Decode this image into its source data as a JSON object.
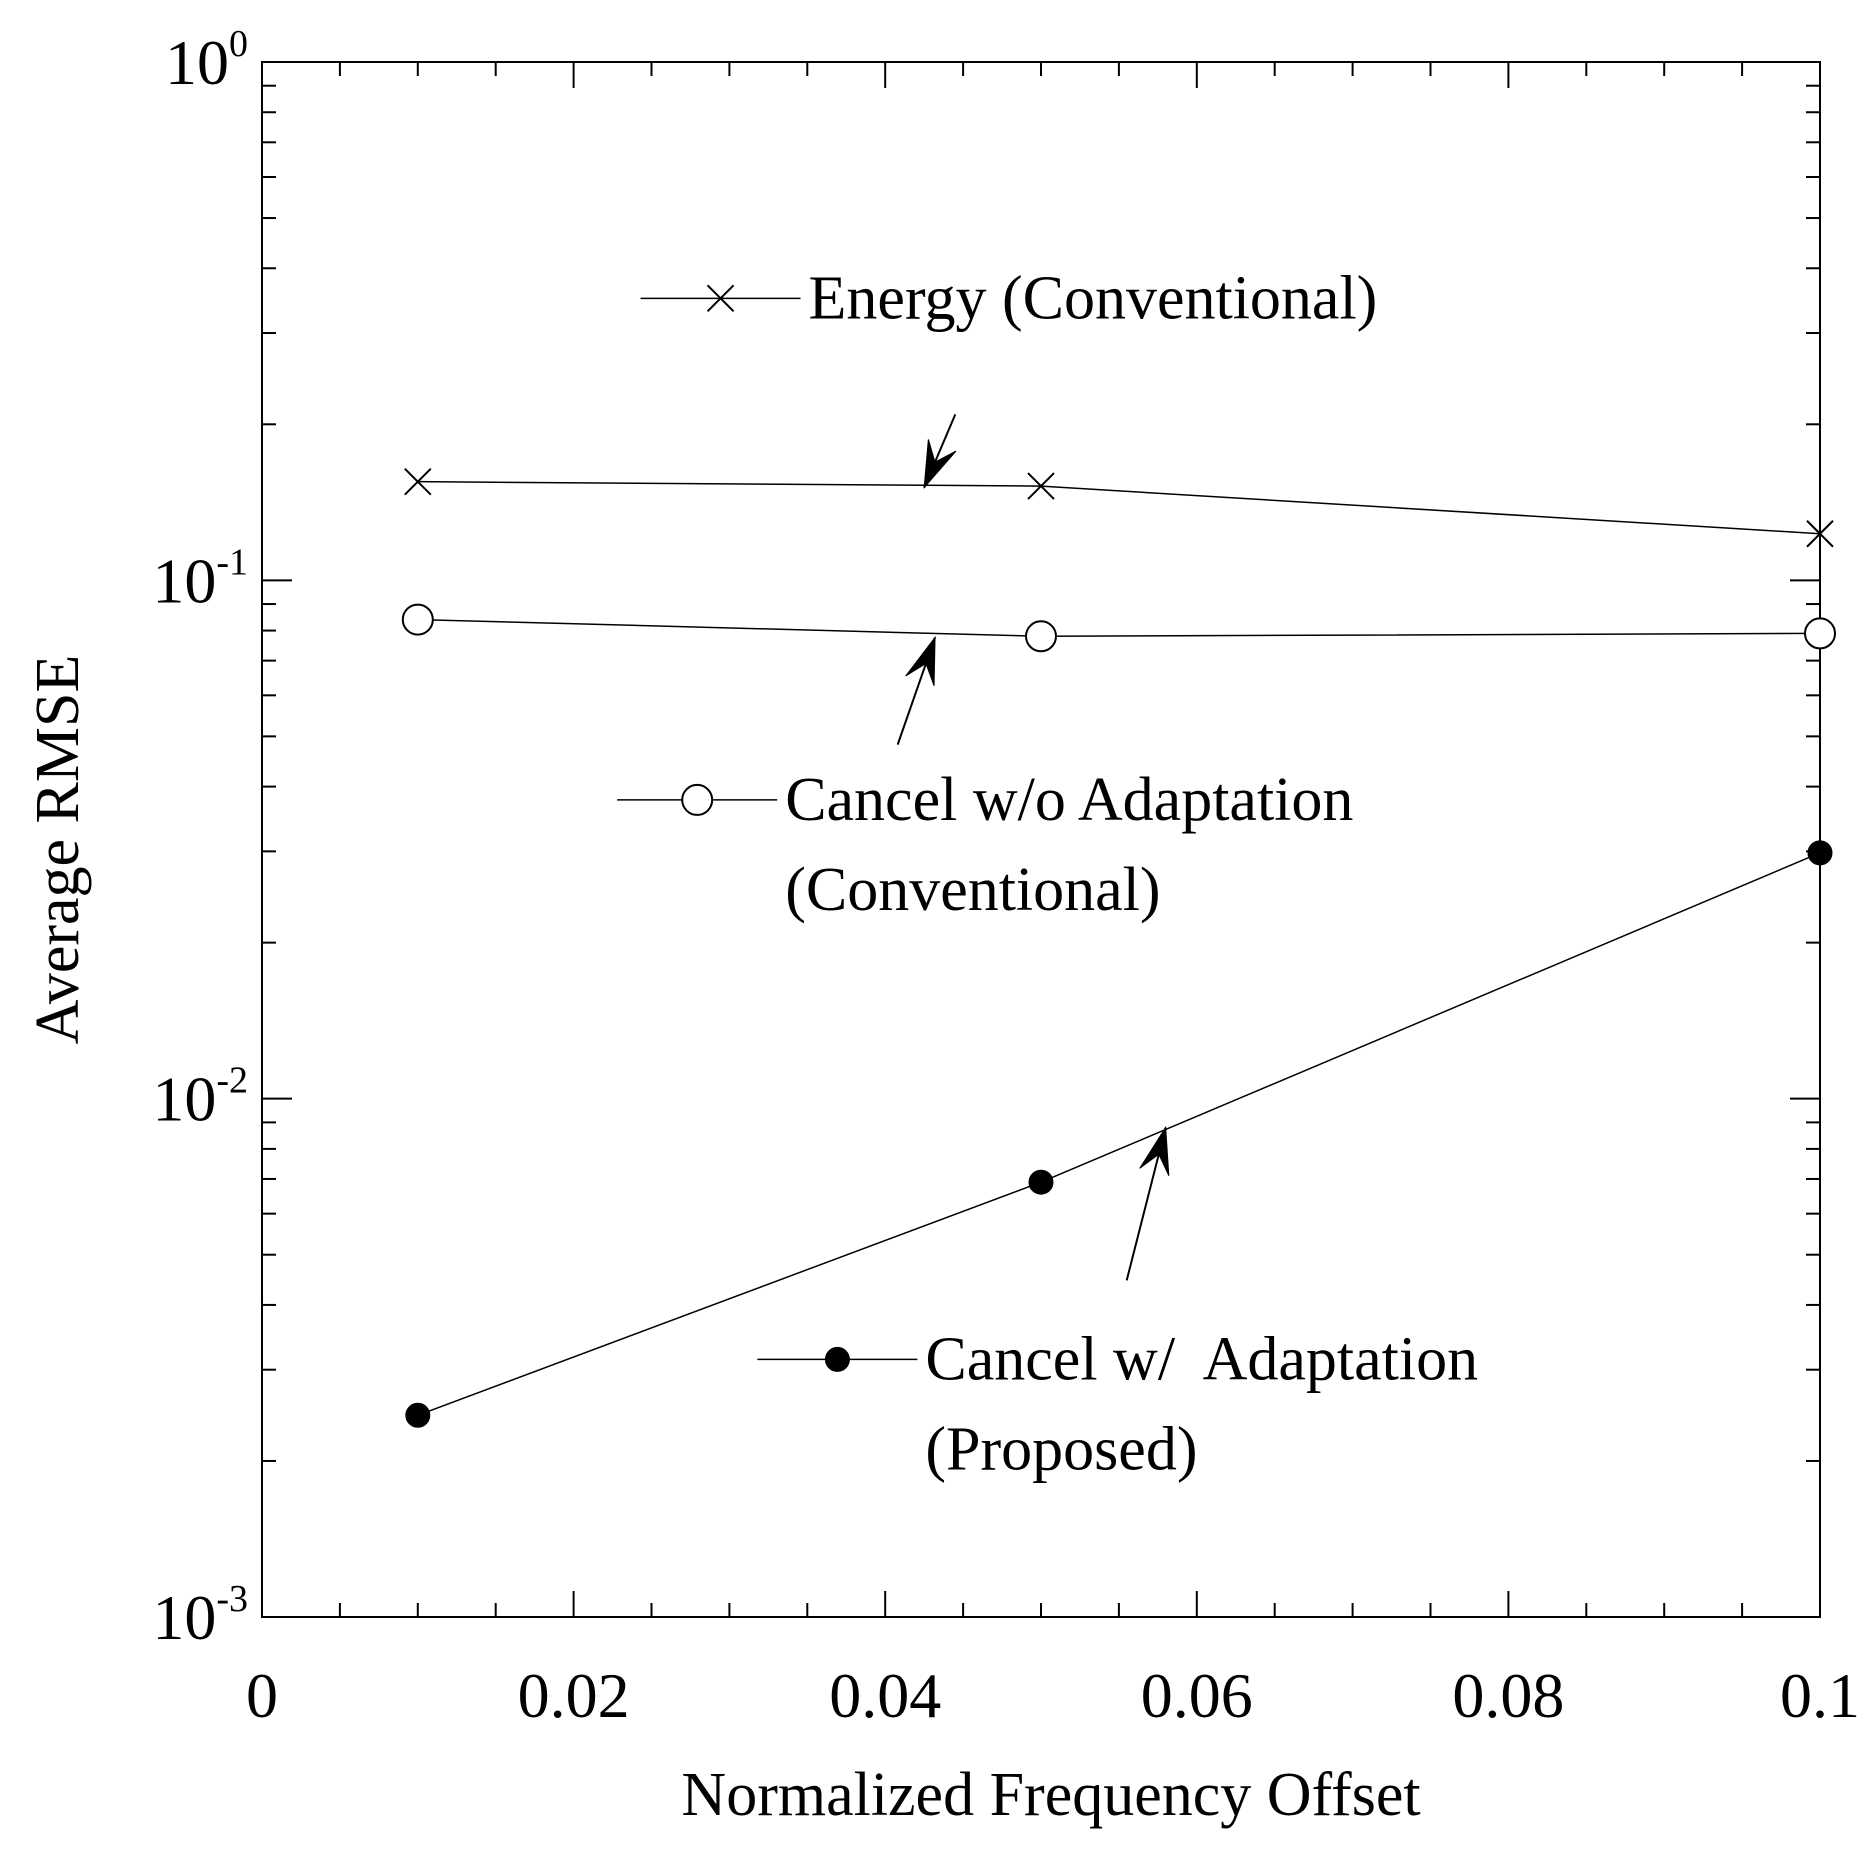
{
  "chart_data": {
    "type": "line",
    "title": "",
    "xlabel": "Normalized Frequency Offset",
    "ylabel": "Average RMSE",
    "xlim": [
      0,
      0.1
    ],
    "ylim": [
      0.001,
      1
    ],
    "yscale": "log",
    "grid": false,
    "x_ticks": [
      {
        "value": 0,
        "label": "0"
      },
      {
        "value": 0.02,
        "label": "0.02"
      },
      {
        "value": 0.04,
        "label": "0.04"
      },
      {
        "value": 0.06,
        "label": "0.06"
      },
      {
        "value": 0.08,
        "label": "0.08"
      },
      {
        "value": 0.1,
        "label": "0.1"
      }
    ],
    "y_ticks": [
      {
        "value": 0.001,
        "base": "10",
        "exp": "-3"
      },
      {
        "value": 0.01,
        "base": "10",
        "exp": "-2"
      },
      {
        "value": 0.1,
        "base": "10",
        "exp": "-1"
      },
      {
        "value": 1,
        "base": "10",
        "exp": "0"
      }
    ],
    "series": [
      {
        "name": "Energy (Conventional)",
        "marker": "x",
        "x": [
          0.01,
          0.05,
          0.1
        ],
        "y": [
          0.155,
          0.152,
          0.123
        ],
        "label_lines": [
          "Energy (Conventional)"
        ],
        "legend_pos": {
          "x": 0.032,
          "y": 0.35
        },
        "arrow": {
          "from": {
            "x": 0.0445,
            "y": 0.209
          },
          "to": {
            "x": 0.0425,
            "y": 0.151
          }
        }
      },
      {
        "name": "Cancel w/o Adaptation (Conventional)",
        "marker": "open-circle",
        "x": [
          0.01,
          0.05,
          0.1
        ],
        "y": [
          0.084,
          0.078,
          0.079
        ],
        "label_lines": [
          "Cancel w/o Adaptation",
          "(Conventional)"
        ],
        "legend_pos": {
          "x": 0.0305,
          "y": 0.0377
        },
        "arrow": {
          "from": {
            "x": 0.0408,
            "y": 0.0482
          },
          "to": {
            "x": 0.0432,
            "y": 0.0776
          }
        }
      },
      {
        "name": "Cancel w/ Adaptation (Proposed)",
        "marker": "filled-circle",
        "x": [
          0.01,
          0.05,
          0.1
        ],
        "y": [
          0.00245,
          0.0069,
          0.0298
        ],
        "label_lines": [
          "Cancel w/  Adaptation",
          "(Proposed)"
        ],
        "legend_pos": {
          "x": 0.0395,
          "y": 0.00314
        },
        "arrow": {
          "from": {
            "x": 0.0555,
            "y": 0.00446
          },
          "to": {
            "x": 0.058,
            "y": 0.0088
          }
        }
      }
    ]
  }
}
